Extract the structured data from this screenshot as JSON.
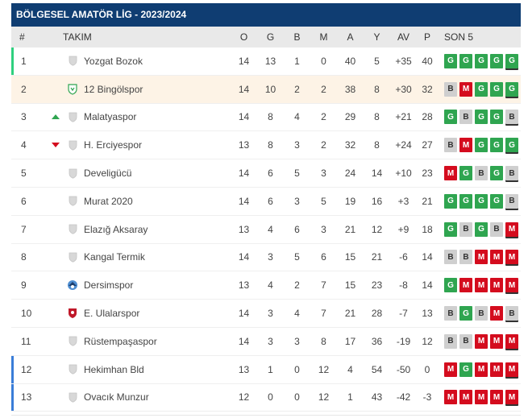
{
  "title": "BÖLGESEL AMATÖR LİG - 2023/2024",
  "headers": {
    "pos": "#",
    "team": "TAKIM",
    "o": "O",
    "g": "G",
    "b": "B",
    "m": "M",
    "a": "A",
    "y": "Y",
    "av": "AV",
    "p": "P",
    "form": "SON 5"
  },
  "colors": {
    "header": "#0f3d72",
    "win": "#2fa550",
    "loss": "#d40c1e",
    "draw": "#cfcfcf",
    "promotion": "#2fd07f",
    "relegation": "#3a7dd8",
    "highlight": "#fdf3e6"
  },
  "rows": [
    {
      "pos": "1",
      "move": "",
      "logo": "shield-icon",
      "team": "Yozgat Bozok",
      "o": "14",
      "g": "13",
      "b": "1",
      "m": "0",
      "a": "40",
      "y": "5",
      "av": "+35",
      "p": "40",
      "form": [
        "G",
        "G",
        "G",
        "G",
        "G"
      ],
      "zone": "promotion",
      "hl": false
    },
    {
      "pos": "2",
      "move": "",
      "logo": "bingol-crest-icon",
      "team": "12 Bingölspor",
      "o": "14",
      "g": "10",
      "b": "2",
      "m": "2",
      "a": "38",
      "y": "8",
      "av": "+30",
      "p": "32",
      "form": [
        "B",
        "M",
        "G",
        "G",
        "G"
      ],
      "zone": "",
      "hl": true
    },
    {
      "pos": "3",
      "move": "up",
      "logo": "shield-icon",
      "team": "Malatyaspor",
      "o": "14",
      "g": "8",
      "b": "4",
      "m": "2",
      "a": "29",
      "y": "8",
      "av": "+21",
      "p": "28",
      "form": [
        "G",
        "B",
        "G",
        "G",
        "B"
      ],
      "zone": "",
      "hl": false
    },
    {
      "pos": "4",
      "move": "down",
      "logo": "shield-icon",
      "team": "H. Erciyespor",
      "o": "13",
      "g": "8",
      "b": "3",
      "m": "2",
      "a": "32",
      "y": "8",
      "av": "+24",
      "p": "27",
      "form": [
        "B",
        "M",
        "G",
        "G",
        "G"
      ],
      "zone": "",
      "hl": false
    },
    {
      "pos": "5",
      "move": "",
      "logo": "shield-icon",
      "team": "Develigücü",
      "o": "14",
      "g": "6",
      "b": "5",
      "m": "3",
      "a": "24",
      "y": "14",
      "av": "+10",
      "p": "23",
      "form": [
        "M",
        "G",
        "B",
        "G",
        "B"
      ],
      "zone": "",
      "hl": false
    },
    {
      "pos": "6",
      "move": "",
      "logo": "shield-icon",
      "team": "Murat 2020",
      "o": "14",
      "g": "6",
      "b": "3",
      "m": "5",
      "a": "19",
      "y": "16",
      "av": "+3",
      "p": "21",
      "form": [
        "G",
        "G",
        "G",
        "G",
        "B"
      ],
      "zone": "",
      "hl": false
    },
    {
      "pos": "7",
      "move": "",
      "logo": "shield-icon",
      "team": "Elazığ Aksaray",
      "o": "13",
      "g": "4",
      "b": "6",
      "m": "3",
      "a": "21",
      "y": "12",
      "av": "+9",
      "p": "18",
      "form": [
        "G",
        "B",
        "G",
        "B",
        "M"
      ],
      "zone": "",
      "hl": false
    },
    {
      "pos": "8",
      "move": "",
      "logo": "shield-icon",
      "team": "Kangal Termik",
      "o": "14",
      "g": "3",
      "b": "5",
      "m": "6",
      "a": "15",
      "y": "21",
      "av": "-6",
      "p": "14",
      "form": [
        "B",
        "B",
        "M",
        "M",
        "M"
      ],
      "zone": "",
      "hl": false
    },
    {
      "pos": "9",
      "move": "",
      "logo": "dersim-crest-icon",
      "team": "Dersimspor",
      "o": "13",
      "g": "4",
      "b": "2",
      "m": "7",
      "a": "15",
      "y": "23",
      "av": "-8",
      "p": "14",
      "form": [
        "G",
        "M",
        "M",
        "M",
        "M"
      ],
      "zone": "",
      "hl": false
    },
    {
      "pos": "10",
      "move": "",
      "logo": "ulalar-crest-icon",
      "team": "E. Ulalarspor",
      "o": "14",
      "g": "3",
      "b": "4",
      "m": "7",
      "a": "21",
      "y": "28",
      "av": "-7",
      "p": "13",
      "form": [
        "B",
        "G",
        "B",
        "M",
        "B"
      ],
      "zone": "",
      "hl": false
    },
    {
      "pos": "11",
      "move": "",
      "logo": "shield-icon",
      "team": "Rüstempaşaspor",
      "o": "14",
      "g": "3",
      "b": "3",
      "m": "8",
      "a": "17",
      "y": "36",
      "av": "-19",
      "p": "12",
      "form": [
        "B",
        "B",
        "M",
        "M",
        "M"
      ],
      "zone": "",
      "hl": false
    },
    {
      "pos": "12",
      "move": "",
      "logo": "shield-icon",
      "team": "Hekimhan Bld",
      "o": "13",
      "g": "1",
      "b": "0",
      "m": "12",
      "a": "4",
      "y": "54",
      "av": "-50",
      "p": "0",
      "form": [
        "M",
        "G",
        "M",
        "M",
        "M"
      ],
      "zone": "relegation",
      "hl": false
    },
    {
      "pos": "13",
      "move": "",
      "logo": "shield-icon",
      "team": "Ovacık Munzur",
      "o": "12",
      "g": "0",
      "b": "0",
      "m": "12",
      "a": "1",
      "y": "43",
      "av": "-42",
      "p": "-3",
      "form": [
        "M",
        "M",
        "M",
        "M",
        "M"
      ],
      "zone": "relegation",
      "hl": false
    }
  ]
}
